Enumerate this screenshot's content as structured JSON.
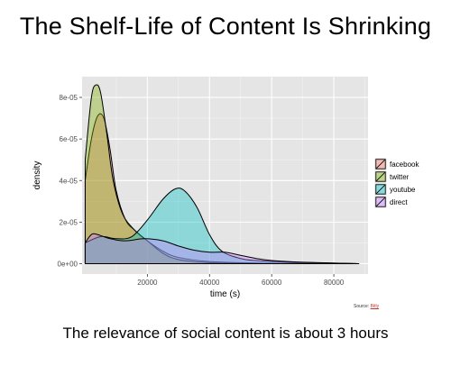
{
  "slide": {
    "title": "The Shelf-Life of Content Is Shrinking",
    "caption": "The relevance of social content is about 3 hours",
    "source_prefix": "Source: ",
    "source_name": "Bitly"
  },
  "chart_data": {
    "type": "area",
    "subtype": "density",
    "xlabel": "time (s)",
    "ylabel": "density",
    "xlim": [
      -1000,
      91000
    ],
    "ylim": [
      -5e-06,
      9e-05
    ],
    "x_ticks": [
      20000,
      40000,
      60000,
      80000
    ],
    "x_tick_labels": [
      "20000",
      "40000",
      "60000",
      "80000"
    ],
    "y_ticks": [
      0,
      2e-05,
      4e-05,
      6e-05,
      8e-05
    ],
    "y_tick_labels": [
      "0e+00",
      "2e-05",
      "4e-05",
      "6e-05",
      "8e-05"
    ],
    "grid": true,
    "background": "#e5e5e5",
    "legend_position": "right",
    "series": [
      {
        "name": "facebook",
        "color": "#f8766d",
        "points": [
          [
            0,
            4e-05
          ],
          [
            2000,
            6e-05
          ],
          [
            4000,
            7.1e-05
          ],
          [
            6000,
            7e-05
          ],
          [
            8000,
            5.5e-05
          ],
          [
            10000,
            3.5e-05
          ],
          [
            13000,
            2.1e-05
          ],
          [
            16000,
            1.6e-05
          ],
          [
            20000,
            1.1e-05
          ],
          [
            25000,
            6e-06
          ],
          [
            30000,
            3e-06
          ],
          [
            40000,
            1e-06
          ],
          [
            55000,
            3e-07
          ],
          [
            70000,
            1e-07
          ],
          [
            88000,
            0
          ]
        ]
      },
      {
        "name": "twitter",
        "color": "#7cae00",
        "points": [
          [
            0,
            5e-05
          ],
          [
            2000,
            8e-05
          ],
          [
            3500,
            8.6e-05
          ],
          [
            5000,
            8.2e-05
          ],
          [
            7000,
            6.2e-05
          ],
          [
            9000,
            4e-05
          ],
          [
            12000,
            2.4e-05
          ],
          [
            16000,
            1.6e-05
          ],
          [
            20000,
            1.1e-05
          ],
          [
            25000,
            5e-06
          ],
          [
            30000,
            2e-06
          ],
          [
            40000,
            5e-07
          ],
          [
            55000,
            2e-07
          ],
          [
            70000,
            1e-07
          ],
          [
            88000,
            0
          ]
        ]
      },
      {
        "name": "youtube",
        "color": "#00bfc4",
        "points": [
          [
            0,
            1e-05
          ],
          [
            5000,
            1.3e-05
          ],
          [
            10000,
            1.2e-05
          ],
          [
            15000,
            1.3e-05
          ],
          [
            20000,
            2.1e-05
          ],
          [
            25000,
            3.1e-05
          ],
          [
            29000,
            3.6e-05
          ],
          [
            32000,
            3.5e-05
          ],
          [
            36000,
            2.7e-05
          ],
          [
            40000,
            1.4e-05
          ],
          [
            44000,
            6e-06
          ],
          [
            50000,
            2.5e-06
          ],
          [
            55000,
            1.5e-06
          ],
          [
            65000,
            8e-07
          ],
          [
            75000,
            4e-07
          ],
          [
            88000,
            0
          ]
        ]
      },
      {
        "name": "direct",
        "color": "#c77cff",
        "points": [
          [
            0,
            1e-05
          ],
          [
            2000,
            1.4e-05
          ],
          [
            4000,
            1.4e-05
          ],
          [
            8000,
            1.2e-05
          ],
          [
            13000,
            1.1e-05
          ],
          [
            19000,
            1.2e-05
          ],
          [
            25000,
            1.1e-05
          ],
          [
            30000,
            8.5e-06
          ],
          [
            35000,
            6.5e-06
          ],
          [
            40000,
            5.5e-06
          ],
          [
            45000,
            5.5e-06
          ],
          [
            50000,
            4e-06
          ],
          [
            55000,
            2.5e-06
          ],
          [
            60000,
            1.5e-06
          ],
          [
            70000,
            7e-07
          ],
          [
            88000,
            0
          ]
        ]
      }
    ]
  }
}
